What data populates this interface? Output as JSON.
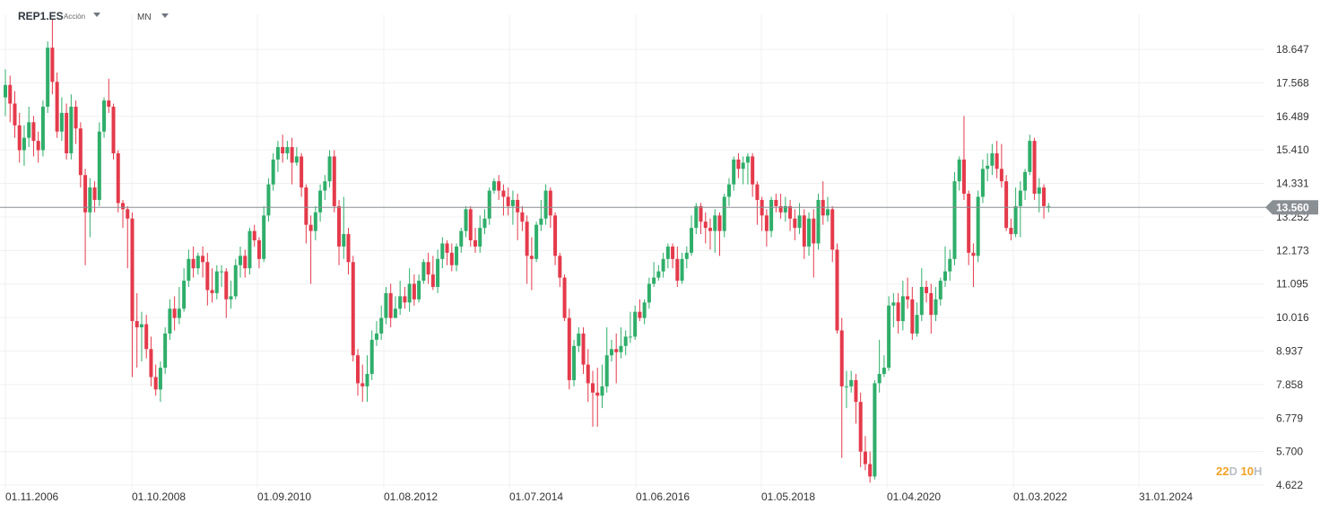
{
  "toolbar": {
    "symbol": "REP1.ES",
    "asset_type": "Acción",
    "timeframe": "MN",
    "symbol_dropdown_icon": "chevron-down-icon",
    "timeframe_dropdown_icon": "chevron-down-icon"
  },
  "countdown": {
    "days": "22",
    "days_unit": "D",
    "hours": "10",
    "hours_unit": "H"
  },
  "colors": {
    "up": "#2fae6a",
    "down": "#e43a4b",
    "grid": "#f0f0f0",
    "price_line": "#8a8f94",
    "price_tag": "#8a8f94"
  },
  "chart_data": {
    "type": "candlestick",
    "symbol": "REP1.ES",
    "interval": "MN",
    "current_price": 13.56,
    "current_price_label": "13.560",
    "y_ticks": [
      "18.647",
      "17.568",
      "16.489",
      "15.410",
      "14.331",
      "13.252",
      "12.173",
      "11.095",
      "10.016",
      "8.937",
      "7.858",
      "6.779",
      "5.700",
      "4.622"
    ],
    "x_ticks": [
      "01.11.2006",
      "01.10.2008",
      "01.09.2010",
      "01.08.2012",
      "01.07.2014",
      "01.06.2016",
      "01.05.2018",
      "01.04.2020",
      "01.03.2022",
      "31.01.2024"
    ],
    "ylim": [
      4.622,
      19.6
    ],
    "grid": true,
    "candles": [
      [
        17.1,
        17.5,
        18.0,
        16.5
      ],
      [
        17.5,
        16.9,
        17.8,
        16.3
      ],
      [
        16.9,
        16.2,
        17.3,
        15.8
      ],
      [
        16.2,
        15.4,
        16.6,
        15.0
      ],
      [
        15.4,
        15.8,
        16.2,
        14.9
      ],
      [
        15.8,
        16.3,
        16.8,
        15.5
      ],
      [
        16.3,
        15.7,
        16.5,
        15.2
      ],
      [
        15.7,
        15.4,
        16.0,
        15.0
      ],
      [
        15.4,
        16.8,
        17.0,
        15.2
      ],
      [
        16.8,
        18.7,
        18.9,
        16.6
      ],
      [
        18.7,
        17.6,
        19.6,
        17.2
      ],
      [
        17.6,
        16.0,
        17.9,
        15.8
      ],
      [
        16.0,
        16.6,
        17.1,
        15.7
      ],
      [
        16.6,
        15.3,
        16.9,
        15.1
      ],
      [
        15.3,
        16.8,
        17.2,
        15.1
      ],
      [
        16.8,
        16.1,
        17.0,
        15.6
      ],
      [
        16.1,
        14.6,
        16.3,
        14.2
      ],
      [
        14.6,
        13.4,
        14.8,
        11.7
      ],
      [
        13.4,
        14.2,
        14.5,
        12.6
      ],
      [
        14.2,
        13.8,
        14.4,
        13.4
      ],
      [
        13.8,
        16.0,
        16.3,
        13.6
      ],
      [
        16.0,
        17.0,
        17.1,
        15.8
      ],
      [
        17.0,
        16.8,
        17.7,
        16.6
      ],
      [
        16.8,
        15.3,
        16.9,
        15.1
      ],
      [
        15.3,
        13.7,
        15.4,
        13.4
      ],
      [
        13.7,
        13.5,
        13.8,
        12.9
      ],
      [
        13.5,
        13.2,
        13.6,
        11.6
      ],
      [
        13.2,
        9.9,
        13.4,
        8.1
      ],
      [
        9.9,
        9.7,
        10.8,
        8.4
      ],
      [
        9.7,
        9.8,
        10.2,
        8.6
      ],
      [
        9.8,
        9.0,
        10.1,
        8.7
      ],
      [
        9.0,
        8.1,
        9.4,
        7.8
      ],
      [
        8.1,
        7.7,
        8.5,
        7.5
      ],
      [
        7.7,
        8.4,
        8.6,
        7.3
      ],
      [
        8.4,
        9.5,
        9.7,
        8.2
      ],
      [
        9.5,
        10.3,
        10.6,
        9.3
      ],
      [
        10.3,
        10.0,
        10.7,
        9.6
      ],
      [
        10.0,
        10.3,
        11.0,
        9.8
      ],
      [
        10.3,
        11.2,
        11.6,
        10.2
      ],
      [
        11.2,
        11.9,
        12.2,
        11.0
      ],
      [
        11.9,
        11.6,
        12.3,
        11.3
      ],
      [
        11.6,
        12.0,
        12.1,
        11.4
      ],
      [
        12.0,
        11.8,
        12.3,
        11.3
      ],
      [
        11.8,
        10.9,
        12.1,
        10.4
      ],
      [
        10.9,
        10.8,
        11.6,
        10.5
      ],
      [
        10.8,
        11.5,
        11.7,
        10.6
      ],
      [
        11.5,
        11.5,
        11.7,
        11.0
      ],
      [
        11.5,
        10.6,
        11.6,
        10.0
      ],
      [
        10.6,
        10.7,
        11.2,
        10.3
      ],
      [
        10.7,
        11.7,
        11.9,
        10.6
      ],
      [
        11.7,
        12.0,
        12.3,
        11.3
      ],
      [
        12.0,
        11.6,
        12.2,
        11.3
      ],
      [
        11.6,
        12.8,
        12.9,
        11.4
      ],
      [
        12.8,
        12.5,
        13.0,
        12.3
      ],
      [
        12.5,
        11.9,
        12.6,
        11.6
      ],
      [
        11.9,
        13.3,
        13.6,
        11.8
      ],
      [
        13.3,
        14.3,
        14.5,
        13.1
      ],
      [
        14.3,
        15.1,
        15.3,
        14.1
      ],
      [
        15.1,
        15.5,
        15.7,
        14.7
      ],
      [
        15.5,
        15.3,
        15.9,
        15.0
      ],
      [
        15.3,
        15.5,
        15.7,
        15.1
      ],
      [
        15.5,
        15.0,
        15.8,
        14.3
      ],
      [
        15.0,
        15.2,
        15.5,
        14.9
      ],
      [
        15.2,
        14.2,
        15.3,
        13.9
      ],
      [
        14.2,
        13.0,
        14.3,
        12.4
      ],
      [
        13.0,
        12.8,
        13.3,
        11.1
      ],
      [
        12.8,
        13.4,
        13.6,
        12.5
      ],
      [
        13.4,
        14.1,
        14.3,
        13.1
      ],
      [
        14.1,
        14.4,
        14.6,
        13.8
      ],
      [
        14.4,
        15.2,
        15.4,
        14.2
      ],
      [
        15.2,
        13.6,
        15.4,
        13.4
      ],
      [
        13.6,
        12.3,
        13.8,
        11.7
      ],
      [
        12.3,
        12.7,
        13.9,
        11.9
      ],
      [
        12.7,
        11.8,
        12.9,
        11.4
      ],
      [
        11.8,
        8.8,
        12.0,
        8.6
      ],
      [
        8.8,
        7.9,
        9.0,
        7.5
      ],
      [
        7.9,
        7.8,
        8.5,
        7.3
      ],
      [
        7.8,
        8.2,
        8.8,
        7.3
      ],
      [
        8.2,
        9.3,
        9.6,
        8.0
      ],
      [
        9.3,
        9.5,
        9.9,
        9.1
      ],
      [
        9.5,
        10.0,
        10.4,
        9.3
      ],
      [
        10.0,
        10.8,
        11.0,
        9.8
      ],
      [
        10.8,
        10.0,
        11.1,
        9.7
      ],
      [
        10.0,
        10.3,
        10.7,
        10.0
      ],
      [
        10.3,
        10.7,
        11.2,
        10.1
      ],
      [
        10.7,
        10.5,
        11.0,
        10.3
      ],
      [
        10.5,
        11.1,
        11.6,
        10.2
      ],
      [
        11.1,
        10.6,
        11.4,
        10.4
      ],
      [
        10.6,
        11.2,
        11.4,
        10.5
      ],
      [
        11.2,
        11.8,
        11.9,
        11.1
      ],
      [
        11.8,
        11.4,
        12.1,
        11.1
      ],
      [
        11.4,
        11.0,
        12.0,
        10.9
      ],
      [
        11.0,
        11.9,
        12.2,
        10.8
      ],
      [
        11.9,
        12.4,
        12.6,
        11.6
      ],
      [
        12.4,
        12.1,
        12.5,
        11.7
      ],
      [
        12.1,
        11.7,
        12.4,
        11.5
      ],
      [
        11.7,
        12.3,
        12.4,
        11.5
      ],
      [
        12.3,
        12.8,
        12.9,
        12.1
      ],
      [
        12.8,
        13.5,
        13.6,
        12.6
      ],
      [
        13.5,
        12.5,
        13.6,
        12.3
      ],
      [
        12.5,
        12.3,
        12.9,
        12.1
      ],
      [
        12.3,
        12.9,
        13.3,
        12.1
      ],
      [
        12.9,
        13.2,
        13.5,
        12.7
      ],
      [
        13.2,
        14.1,
        14.2,
        13.0
      ],
      [
        14.1,
        14.4,
        14.5,
        14.0
      ],
      [
        14.4,
        14.1,
        14.6,
        13.8
      ],
      [
        14.1,
        13.9,
        14.3,
        13.3
      ],
      [
        13.9,
        13.6,
        14.2,
        13.3
      ],
      [
        13.6,
        13.8,
        14.1,
        13.0
      ],
      [
        13.8,
        13.4,
        14.0,
        12.5
      ],
      [
        13.4,
        13.1,
        13.6,
        12.8
      ],
      [
        13.1,
        12.0,
        13.3,
        11.1
      ],
      [
        12.0,
        11.9,
        12.6,
        10.9
      ],
      [
        11.9,
        13.0,
        13.1,
        11.8
      ],
      [
        13.0,
        13.2,
        13.8,
        12.8
      ],
      [
        13.2,
        14.1,
        14.3,
        13.0
      ],
      [
        14.1,
        13.3,
        14.2,
        12.9
      ],
      [
        13.3,
        12.0,
        13.4,
        11.7
      ],
      [
        12.0,
        11.3,
        12.1,
        11.0
      ],
      [
        11.3,
        10.0,
        11.4,
        9.9
      ],
      [
        10.0,
        8.0,
        10.3,
        7.7
      ],
      [
        8.0,
        9.1,
        9.3,
        7.8
      ],
      [
        9.1,
        9.5,
        9.7,
        8.9
      ],
      [
        9.5,
        8.5,
        9.7,
        8.2
      ],
      [
        8.5,
        7.9,
        9.0,
        7.3
      ],
      [
        7.9,
        7.6,
        8.3,
        6.5
      ],
      [
        7.6,
        7.5,
        8.4,
        6.5
      ],
      [
        7.5,
        7.8,
        8.5,
        7.1
      ],
      [
        7.8,
        8.8,
        9.7,
        7.6
      ],
      [
        8.8,
        9.0,
        9.3,
        8.6
      ],
      [
        9.0,
        8.9,
        9.5,
        7.9
      ],
      [
        8.9,
        9.1,
        9.7,
        8.7
      ],
      [
        9.1,
        9.4,
        9.6,
        8.8
      ],
      [
        9.4,
        9.4,
        10.2,
        9.2
      ],
      [
        9.4,
        10.2,
        10.4,
        9.3
      ],
      [
        10.2,
        10.0,
        10.6,
        9.9
      ],
      [
        10.0,
        10.5,
        10.6,
        9.8
      ],
      [
        10.5,
        11.1,
        11.3,
        10.3
      ],
      [
        11.1,
        11.3,
        11.8,
        11.0
      ],
      [
        11.3,
        11.5,
        11.7,
        11.2
      ],
      [
        11.5,
        11.9,
        12.1,
        11.3
      ],
      [
        11.9,
        12.3,
        12.4,
        11.6
      ],
      [
        12.3,
        11.9,
        12.4,
        11.6
      ],
      [
        11.9,
        11.2,
        12.3,
        11.0
      ],
      [
        11.2,
        11.9,
        12.1,
        11.1
      ],
      [
        11.9,
        12.1,
        12.3,
        11.6
      ],
      [
        12.1,
        12.9,
        13.3,
        12.0
      ],
      [
        12.9,
        13.6,
        13.7,
        12.7
      ],
      [
        13.6,
        13.1,
        13.7,
        12.7
      ],
      [
        13.1,
        12.9,
        13.4,
        12.4
      ],
      [
        12.9,
        12.8,
        13.2,
        12.2
      ],
      [
        12.8,
        13.3,
        13.5,
        12.1
      ],
      [
        13.3,
        12.8,
        13.4,
        12.0
      ],
      [
        12.8,
        13.9,
        14.0,
        12.6
      ],
      [
        13.9,
        14.3,
        14.5,
        13.6
      ],
      [
        14.3,
        15.1,
        15.2,
        14.1
      ],
      [
        15.1,
        14.8,
        15.3,
        14.5
      ],
      [
        14.8,
        15.0,
        15.2,
        14.3
      ],
      [
        15.0,
        15.2,
        15.3,
        14.3
      ],
      [
        15.2,
        14.3,
        15.3,
        13.9
      ],
      [
        14.3,
        13.8,
        14.4,
        13.0
      ],
      [
        13.8,
        13.3,
        13.9,
        12.8
      ],
      [
        13.3,
        12.8,
        13.5,
        12.3
      ],
      [
        12.8,
        13.8,
        13.9,
        12.6
      ],
      [
        13.8,
        13.6,
        14.0,
        13.4
      ],
      [
        13.6,
        13.4,
        14.0,
        13.2
      ],
      [
        13.4,
        13.6,
        13.9,
        13.1
      ],
      [
        13.6,
        13.2,
        13.8,
        12.8
      ],
      [
        13.2,
        12.9,
        13.5,
        12.5
      ],
      [
        12.9,
        13.3,
        13.7,
        12.7
      ],
      [
        13.3,
        12.3,
        13.5,
        11.9
      ],
      [
        12.3,
        13.2,
        13.4,
        12.0
      ],
      [
        13.2,
        12.4,
        13.5,
        11.3
      ],
      [
        12.4,
        13.8,
        14.0,
        12.2
      ],
      [
        13.8,
        13.3,
        14.4,
        13.0
      ],
      [
        13.3,
        13.5,
        13.9,
        13.1
      ],
      [
        13.5,
        12.2,
        13.6,
        11.8
      ],
      [
        12.2,
        9.6,
        12.4,
        9.5
      ],
      [
        9.6,
        7.8,
        10.0,
        5.5
      ],
      [
        7.8,
        7.8,
        8.3,
        7.1
      ],
      [
        7.8,
        8.0,
        8.3,
        7.6
      ],
      [
        8.0,
        7.3,
        8.2,
        6.6
      ],
      [
        7.3,
        5.7,
        7.6,
        5.2
      ],
      [
        5.7,
        5.3,
        6.2,
        5.1
      ],
      [
        5.3,
        4.9,
        5.7,
        4.7
      ],
      [
        4.9,
        7.9,
        8.0,
        4.8
      ],
      [
        7.9,
        8.2,
        9.3,
        7.6
      ],
      [
        8.2,
        8.4,
        8.8,
        8.1
      ],
      [
        8.4,
        10.4,
        10.7,
        8.3
      ],
      [
        10.4,
        10.5,
        10.8,
        9.7
      ],
      [
        10.5,
        9.9,
        10.8,
        9.5
      ],
      [
        9.9,
        10.7,
        11.2,
        9.6
      ],
      [
        10.7,
        10.6,
        11.3,
        10.3
      ],
      [
        10.6,
        9.5,
        11.0,
        9.3
      ],
      [
        9.5,
        10.1,
        10.5,
        9.4
      ],
      [
        10.1,
        11.0,
        11.6,
        9.9
      ],
      [
        11.0,
        10.8,
        11.2,
        10.5
      ],
      [
        10.8,
        10.1,
        11.1,
        9.5
      ],
      [
        10.1,
        10.6,
        11.0,
        9.9
      ],
      [
        10.6,
        11.2,
        11.3,
        10.4
      ],
      [
        11.2,
        11.5,
        12.3,
        11.0
      ],
      [
        11.5,
        11.9,
        12.2,
        11.2
      ],
      [
        11.9,
        14.4,
        14.7,
        11.7
      ],
      [
        14.4,
        15.1,
        15.2,
        14.1
      ],
      [
        15.1,
        14.0,
        16.5,
        13.8
      ],
      [
        14.0,
        12.1,
        14.1,
        11.7
      ],
      [
        12.1,
        12.0,
        12.4,
        11.0
      ],
      [
        12.0,
        13.9,
        14.1,
        11.8
      ],
      [
        13.9,
        14.8,
        15.1,
        13.7
      ],
      [
        14.8,
        14.9,
        15.3,
        14.4
      ],
      [
        14.9,
        15.3,
        15.6,
        14.6
      ],
      [
        15.3,
        14.8,
        15.7,
        14.5
      ],
      [
        14.8,
        14.4,
        15.6,
        14.2
      ],
      [
        14.4,
        12.9,
        14.6,
        12.8
      ],
      [
        12.9,
        12.7,
        13.2,
        12.5
      ],
      [
        12.7,
        13.6,
        14.2,
        12.6
      ],
      [
        13.6,
        14.1,
        14.4,
        12.6
      ],
      [
        14.1,
        14.7,
        14.8,
        13.8
      ],
      [
        14.7,
        15.7,
        15.9,
        14.6
      ],
      [
        15.7,
        14.0,
        15.8,
        13.8
      ],
      [
        14.0,
        14.2,
        14.5,
        13.4
      ],
      [
        14.2,
        13.6,
        14.3,
        13.2
      ],
      [
        13.6,
        13.6,
        13.7,
        13.4
      ]
    ]
  }
}
